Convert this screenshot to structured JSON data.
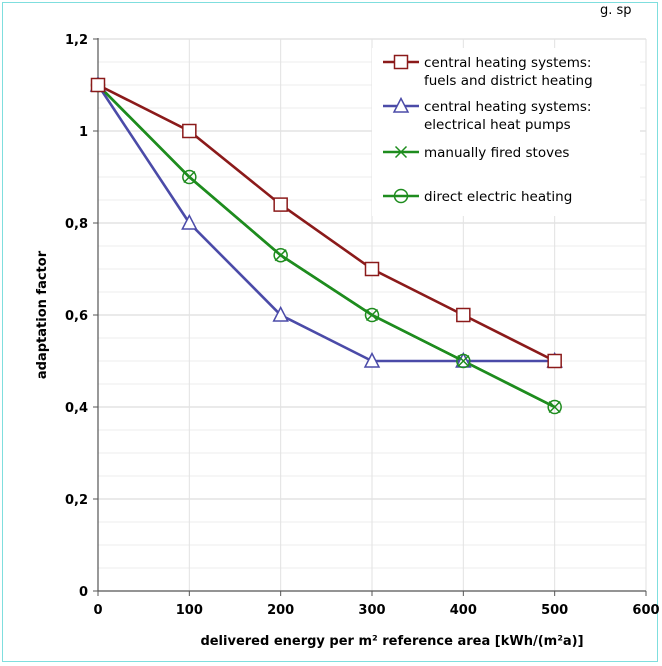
{
  "partial_header": {
    "text": "g. sp"
  },
  "chart_data": {
    "type": "line",
    "x": [
      0,
      100,
      200,
      300,
      400,
      500
    ],
    "xlim": [
      0,
      600
    ],
    "ylim": [
      0,
      1.2
    ],
    "xticks": [
      "0",
      "100",
      "200",
      "300",
      "400",
      "500",
      "600"
    ],
    "yticks": [
      "0",
      "0,2",
      "0,4",
      "0,6",
      "0,8",
      "1",
      "1,2"
    ],
    "xlabel": "delivered energy per m² reference area [kWh/(m²a)]",
    "ylabel": "adaptation factor",
    "grid": "horizontal minor and major lines",
    "legend_position": "top-right",
    "series": [
      {
        "name": "central heating systems: fuels and district heating",
        "legend_lines": [
          "central heating systems:",
          "fuels and district heating"
        ],
        "values": [
          1.1,
          1.0,
          0.84,
          0.7,
          0.6,
          0.5
        ],
        "color": "#8b1a1a",
        "marker": "square"
      },
      {
        "name": "central heating systems: electrical heat pumps",
        "legend_lines": [
          "central heating systems:",
          "electrical heat pumps"
        ],
        "values": [
          1.1,
          0.8,
          0.6,
          0.5,
          0.5,
          0.5
        ],
        "color": "#4b4ba8",
        "marker": "triangle"
      },
      {
        "name": "manually fired stoves",
        "legend_lines": [
          "manually fired stoves"
        ],
        "values": [
          1.1,
          0.9,
          0.73,
          0.6,
          0.5,
          0.4
        ],
        "color": "#1e8c1e",
        "marker": "x"
      },
      {
        "name": "direct electric heating",
        "legend_lines": [
          "direct electric heating"
        ],
        "values": [
          1.1,
          0.9,
          0.73,
          0.6,
          0.5,
          0.4
        ],
        "color": "#1e8c1e",
        "marker": "circle"
      }
    ]
  }
}
